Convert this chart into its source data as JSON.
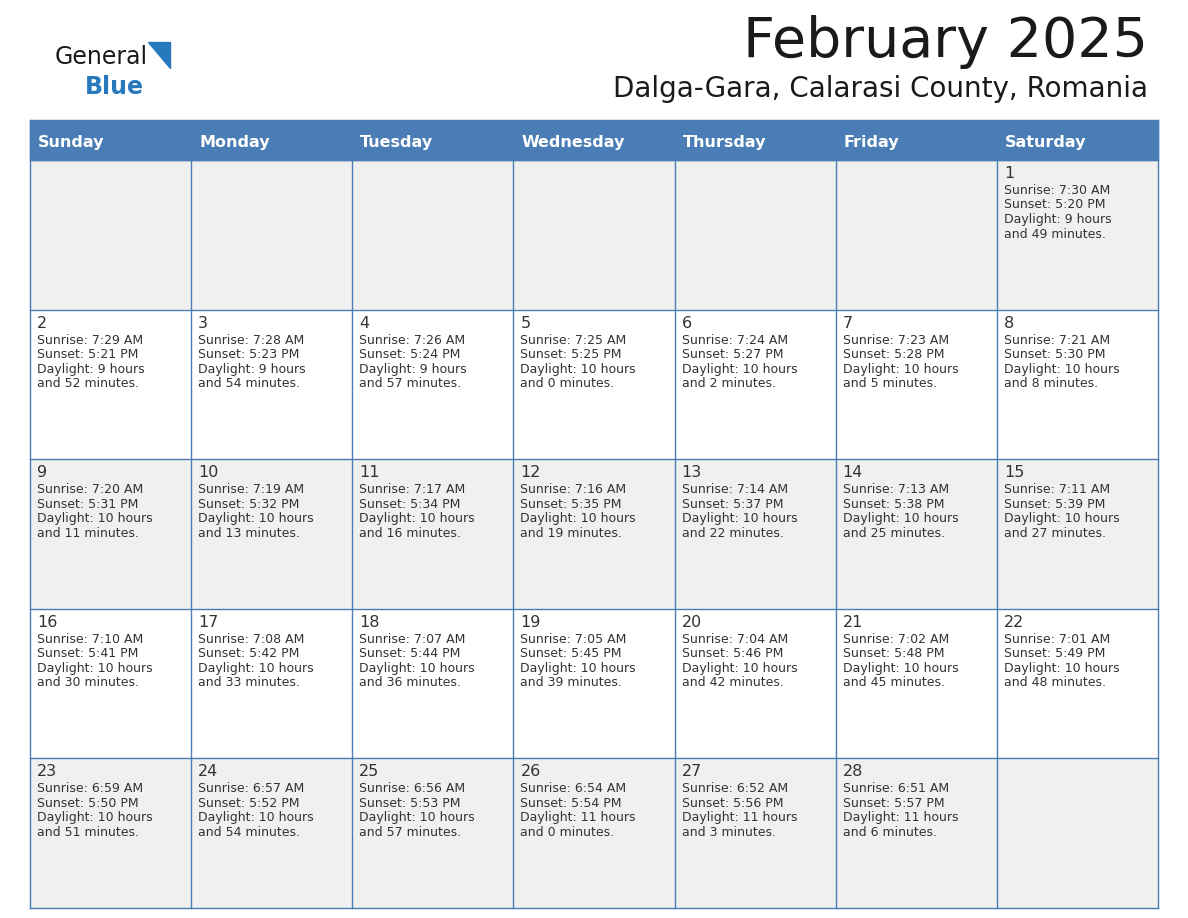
{
  "title": "February 2025",
  "subtitle": "Dalga-Gara, Calarasi County, Romania",
  "days_of_week": [
    "Sunday",
    "Monday",
    "Tuesday",
    "Wednesday",
    "Thursday",
    "Friday",
    "Saturday"
  ],
  "header_bg": "#4a7db5",
  "header_text": "#ffffff",
  "row_bg_odd": "#f0f0f0",
  "row_bg_even": "#ffffff",
  "cell_border": "#4a7db5",
  "day_number_color": "#333333",
  "info_text_color": "#333333",
  "logo_text_color": "#1a1a1a",
  "logo_blue_color": "#2878be",
  "title_color": "#1a1a1a",
  "calendar_data": [
    [
      null,
      null,
      null,
      null,
      null,
      null,
      {
        "day": 1,
        "sunrise": "7:30 AM",
        "sunset": "5:20 PM",
        "daylight_line1": "Daylight: 9 hours",
        "daylight_line2": "and 49 minutes."
      }
    ],
    [
      {
        "day": 2,
        "sunrise": "7:29 AM",
        "sunset": "5:21 PM",
        "daylight_line1": "Daylight: 9 hours",
        "daylight_line2": "and 52 minutes."
      },
      {
        "day": 3,
        "sunrise": "7:28 AM",
        "sunset": "5:23 PM",
        "daylight_line1": "Daylight: 9 hours",
        "daylight_line2": "and 54 minutes."
      },
      {
        "day": 4,
        "sunrise": "7:26 AM",
        "sunset": "5:24 PM",
        "daylight_line1": "Daylight: 9 hours",
        "daylight_line2": "and 57 minutes."
      },
      {
        "day": 5,
        "sunrise": "7:25 AM",
        "sunset": "5:25 PM",
        "daylight_line1": "Daylight: 10 hours",
        "daylight_line2": "and 0 minutes."
      },
      {
        "day": 6,
        "sunrise": "7:24 AM",
        "sunset": "5:27 PM",
        "daylight_line1": "Daylight: 10 hours",
        "daylight_line2": "and 2 minutes."
      },
      {
        "day": 7,
        "sunrise": "7:23 AM",
        "sunset": "5:28 PM",
        "daylight_line1": "Daylight: 10 hours",
        "daylight_line2": "and 5 minutes."
      },
      {
        "day": 8,
        "sunrise": "7:21 AM",
        "sunset": "5:30 PM",
        "daylight_line1": "Daylight: 10 hours",
        "daylight_line2": "and 8 minutes."
      }
    ],
    [
      {
        "day": 9,
        "sunrise": "7:20 AM",
        "sunset": "5:31 PM",
        "daylight_line1": "Daylight: 10 hours",
        "daylight_line2": "and 11 minutes."
      },
      {
        "day": 10,
        "sunrise": "7:19 AM",
        "sunset": "5:32 PM",
        "daylight_line1": "Daylight: 10 hours",
        "daylight_line2": "and 13 minutes."
      },
      {
        "day": 11,
        "sunrise": "7:17 AM",
        "sunset": "5:34 PM",
        "daylight_line1": "Daylight: 10 hours",
        "daylight_line2": "and 16 minutes."
      },
      {
        "day": 12,
        "sunrise": "7:16 AM",
        "sunset": "5:35 PM",
        "daylight_line1": "Daylight: 10 hours",
        "daylight_line2": "and 19 minutes."
      },
      {
        "day": 13,
        "sunrise": "7:14 AM",
        "sunset": "5:37 PM",
        "daylight_line1": "Daylight: 10 hours",
        "daylight_line2": "and 22 minutes."
      },
      {
        "day": 14,
        "sunrise": "7:13 AM",
        "sunset": "5:38 PM",
        "daylight_line1": "Daylight: 10 hours",
        "daylight_line2": "and 25 minutes."
      },
      {
        "day": 15,
        "sunrise": "7:11 AM",
        "sunset": "5:39 PM",
        "daylight_line1": "Daylight: 10 hours",
        "daylight_line2": "and 27 minutes."
      }
    ],
    [
      {
        "day": 16,
        "sunrise": "7:10 AM",
        "sunset": "5:41 PM",
        "daylight_line1": "Daylight: 10 hours",
        "daylight_line2": "and 30 minutes."
      },
      {
        "day": 17,
        "sunrise": "7:08 AM",
        "sunset": "5:42 PM",
        "daylight_line1": "Daylight: 10 hours",
        "daylight_line2": "and 33 minutes."
      },
      {
        "day": 18,
        "sunrise": "7:07 AM",
        "sunset": "5:44 PM",
        "daylight_line1": "Daylight: 10 hours",
        "daylight_line2": "and 36 minutes."
      },
      {
        "day": 19,
        "sunrise": "7:05 AM",
        "sunset": "5:45 PM",
        "daylight_line1": "Daylight: 10 hours",
        "daylight_line2": "and 39 minutes."
      },
      {
        "day": 20,
        "sunrise": "7:04 AM",
        "sunset": "5:46 PM",
        "daylight_line1": "Daylight: 10 hours",
        "daylight_line2": "and 42 minutes."
      },
      {
        "day": 21,
        "sunrise": "7:02 AM",
        "sunset": "5:48 PM",
        "daylight_line1": "Daylight: 10 hours",
        "daylight_line2": "and 45 minutes."
      },
      {
        "day": 22,
        "sunrise": "7:01 AM",
        "sunset": "5:49 PM",
        "daylight_line1": "Daylight: 10 hours",
        "daylight_line2": "and 48 minutes."
      }
    ],
    [
      {
        "day": 23,
        "sunrise": "6:59 AM",
        "sunset": "5:50 PM",
        "daylight_line1": "Daylight: 10 hours",
        "daylight_line2": "and 51 minutes."
      },
      {
        "day": 24,
        "sunrise": "6:57 AM",
        "sunset": "5:52 PM",
        "daylight_line1": "Daylight: 10 hours",
        "daylight_line2": "and 54 minutes."
      },
      {
        "day": 25,
        "sunrise": "6:56 AM",
        "sunset": "5:53 PM",
        "daylight_line1": "Daylight: 10 hours",
        "daylight_line2": "and 57 minutes."
      },
      {
        "day": 26,
        "sunrise": "6:54 AM",
        "sunset": "5:54 PM",
        "daylight_line1": "Daylight: 11 hours",
        "daylight_line2": "and 0 minutes."
      },
      {
        "day": 27,
        "sunrise": "6:52 AM",
        "sunset": "5:56 PM",
        "daylight_line1": "Daylight: 11 hours",
        "daylight_line2": "and 3 minutes."
      },
      {
        "day": 28,
        "sunrise": "6:51 AM",
        "sunset": "5:57 PM",
        "daylight_line1": "Daylight: 11 hours",
        "daylight_line2": "and 6 minutes."
      },
      null
    ]
  ]
}
